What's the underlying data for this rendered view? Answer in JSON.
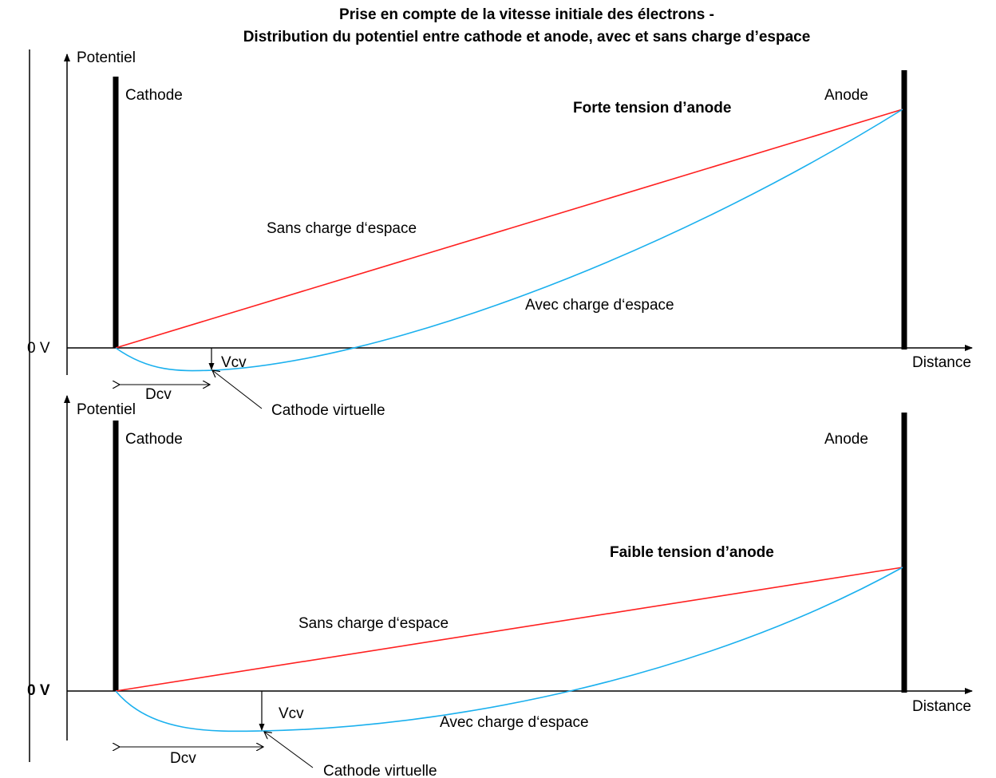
{
  "title_line1": "Prise en compte de la vitesse initiale des électrons -",
  "title_line2": "Distribution du potentiel entre cathode et anode, avec et sans charge d’espace",
  "colors": {
    "without_space_charge": "#ff2020",
    "with_space_charge": "#1ab0ee",
    "axes": "#000000"
  },
  "top_panel": {
    "y_axis_label": "Potentiel",
    "x_axis_label": "Distance",
    "zero_label": "0 V",
    "cathode_label": "Cathode",
    "anode_label": "Anode",
    "condition_label": "Forte tension d’anode",
    "line_label": "Sans charge d‘espace",
    "curve_label": "Avec charge d‘espace",
    "vcv_label": "Vcv",
    "dcv_label": "Dcv",
    "virtual_cathode_label": "Cathode virtuelle"
  },
  "bottom_panel": {
    "y_axis_label": "Potentiel",
    "x_axis_label": "Distance",
    "zero_label": "0 V",
    "cathode_label": "Cathode",
    "anode_label": "Anode",
    "condition_label": "Faible tension d’anode",
    "line_label": "Sans charge d‘espace",
    "curve_label": "Avec charge d‘espace",
    "vcv_label": "Vcv",
    "dcv_label": "Dcv",
    "virtual_cathode_label": "Cathode virtuelle"
  }
}
